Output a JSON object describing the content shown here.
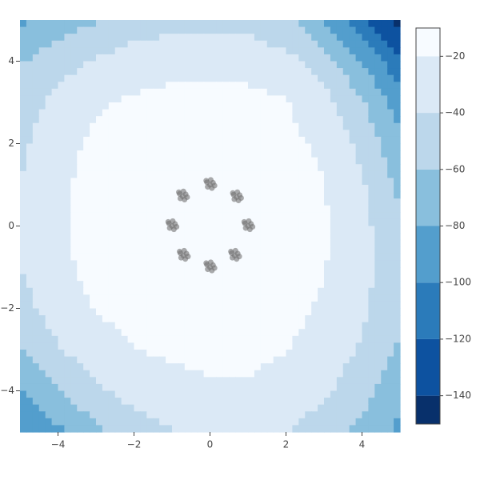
{
  "chart_data": {
    "type": "contour",
    "x": [
      -5,
      -4,
      -3,
      -2,
      -1,
      0,
      1,
      2,
      3,
      4,
      5
    ],
    "y": [
      5,
      4,
      3,
      2,
      1,
      0,
      -1,
      -2,
      -3,
      -4,
      -5
    ],
    "z": [
      [
        -85,
        -70,
        -62,
        -52,
        -47,
        -45,
        -48,
        -56,
        -80,
        -115,
        -148
      ],
      [
        -62,
        -48,
        -38,
        -30,
        -26,
        -25,
        -27,
        -34,
        -50,
        -80,
        -115
      ],
      [
        -50,
        -34,
        -22,
        -17,
        -15,
        -14,
        -15,
        -19,
        -32,
        -58,
        -92
      ],
      [
        -44,
        -26,
        -16,
        -13,
        -12,
        -12,
        -12,
        -15,
        -24,
        -45,
        -76
      ],
      [
        -40,
        -23,
        -15,
        -12,
        -11,
        -11,
        -11,
        -13,
        -19,
        -38,
        -65
      ],
      [
        -38,
        -22,
        -14,
        -11,
        -11,
        -11,
        -11,
        -12,
        -18,
        -34,
        -58
      ],
      [
        -40,
        -24,
        -15,
        -12,
        -11,
        -11,
        -11,
        -13,
        -19,
        -33,
        -55
      ],
      [
        -48,
        -30,
        -19,
        -14,
        -13,
        -13,
        -13,
        -15,
        -22,
        -36,
        -57
      ],
      [
        -62,
        -42,
        -28,
        -20,
        -17,
        -16,
        -16,
        -19,
        -28,
        -42,
        -63
      ],
      [
        -82,
        -60,
        -43,
        -32,
        -26,
        -22,
        -22,
        -27,
        -37,
        -52,
        -75
      ],
      [
        -95,
        -85,
        -65,
        -50,
        -41,
        -36,
        -35,
        -40,
        -50,
        -66,
        -85
      ]
    ],
    "levels": [
      -150,
      -140,
      -120,
      -100,
      -80,
      -60,
      -40,
      -20,
      -10
    ],
    "colors": [
      "#08306b",
      "#0d52a0",
      "#2b7bba",
      "#539ecd",
      "#89bfdd",
      "#bcd7eb",
      "#dbe9f6",
      "#f7fbff"
    ],
    "xlim": [
      -5,
      5
    ],
    "ylim": [
      -5,
      5
    ],
    "xticks": [
      {
        "value": -4,
        "label": "−4"
      },
      {
        "value": -2,
        "label": "−2"
      },
      0,
      2,
      4
    ],
    "yticks": [
      {
        "value": -4,
        "label": "−4"
      },
      {
        "value": -2,
        "label": "−2"
      },
      0,
      2,
      4
    ],
    "colorbar": {
      "lim": [
        -150,
        -10
      ],
      "ticks": [
        {
          "value": -20,
          "label": "−20"
        },
        {
          "value": -40,
          "label": "−40"
        },
        {
          "value": -60,
          "label": "−60"
        },
        {
          "value": -80,
          "label": "−80"
        },
        {
          "value": -100,
          "label": "−100"
        },
        {
          "value": -120,
          "label": "−120"
        },
        {
          "value": -140,
          "label": "−140"
        }
      ]
    },
    "scatter": {
      "color": "rgba(115,115,115,0.6)",
      "x": [
        0,
        0.08,
        -0.08,
        0.05,
        -0.06,
        0.12,
        -0.1,
        0.02,
        0.7,
        0.78,
        0.62,
        0.75,
        0.64,
        0.82,
        0.6,
        0.72,
        1.0,
        1.08,
        0.92,
        1.05,
        0.94,
        1.12,
        0.9,
        1.02,
        0.65,
        0.73,
        0.57,
        0.7,
        0.59,
        0.77,
        0.55,
        0.67,
        0,
        0.08,
        -0.08,
        0.05,
        -0.06,
        0.12,
        -0.1,
        0.02,
        -0.7,
        -0.62,
        -0.78,
        -0.65,
        -0.76,
        -0.58,
        -0.8,
        -0.68,
        -1.0,
        -0.92,
        -1.08,
        -0.95,
        -1.06,
        -0.88,
        -1.1,
        -0.98,
        -0.72,
        -0.64,
        -0.8,
        -0.67,
        -0.78,
        -0.6,
        -0.82,
        -0.7
      ],
      "y": [
        1.0,
        1.05,
        1.06,
        0.92,
        0.95,
        0.98,
        1.1,
        1.12,
        0.7,
        0.75,
        0.76,
        0.62,
        0.65,
        0.68,
        0.8,
        0.82,
        0,
        0.05,
        0.06,
        -0.08,
        -0.05,
        -0.02,
        0.1,
        0.12,
        -0.72,
        -0.67,
        -0.66,
        -0.8,
        -0.77,
        -0.74,
        -0.62,
        -0.6,
        -1.0,
        -0.95,
        -0.94,
        -1.08,
        -1.05,
        -1.02,
        -0.9,
        -0.88,
        -0.72,
        -0.67,
        -0.66,
        -0.8,
        -0.77,
        -0.74,
        -0.62,
        -0.6,
        0,
        0.05,
        0.06,
        -0.08,
        -0.05,
        -0.02,
        0.1,
        0.12,
        0.72,
        0.77,
        0.78,
        0.64,
        0.67,
        0.7,
        0.82,
        0.84
      ]
    }
  }
}
